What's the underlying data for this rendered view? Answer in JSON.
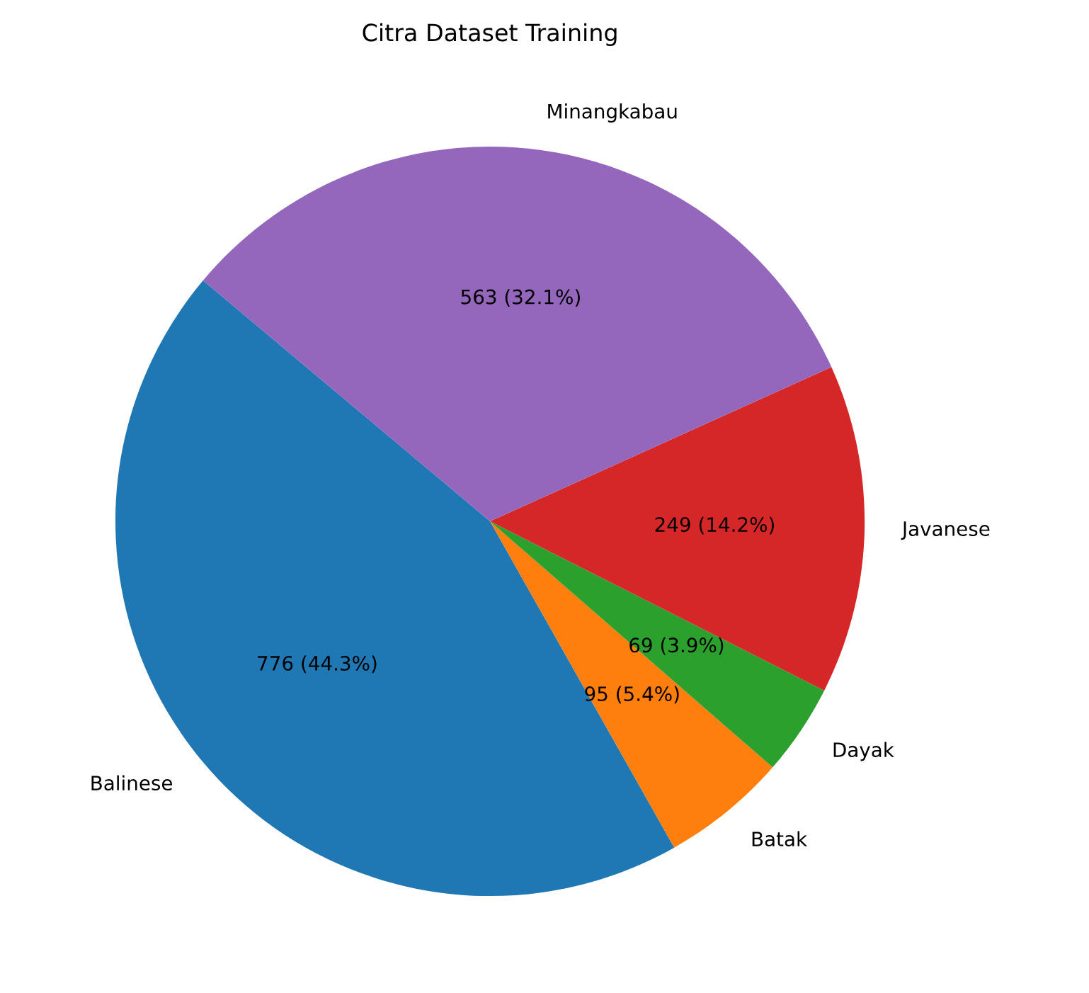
{
  "chart_data": {
    "type": "pie",
    "title": "Citra Dataset Training",
    "categories": [
      "Balinese",
      "Batak",
      "Dayak",
      "Javanese",
      "Minangkabau"
    ],
    "values": [
      776,
      95,
      69,
      249,
      563
    ],
    "colors": [
      "#1f77b4",
      "#ff7f0e",
      "#2ca02c",
      "#d62728",
      "#9467bd"
    ],
    "value_labels": [
      "776 (44.3%)",
      "95 (5.4%)",
      "69 (3.9%)",
      "249 (14.2%)",
      "563 (32.1%)"
    ]
  }
}
